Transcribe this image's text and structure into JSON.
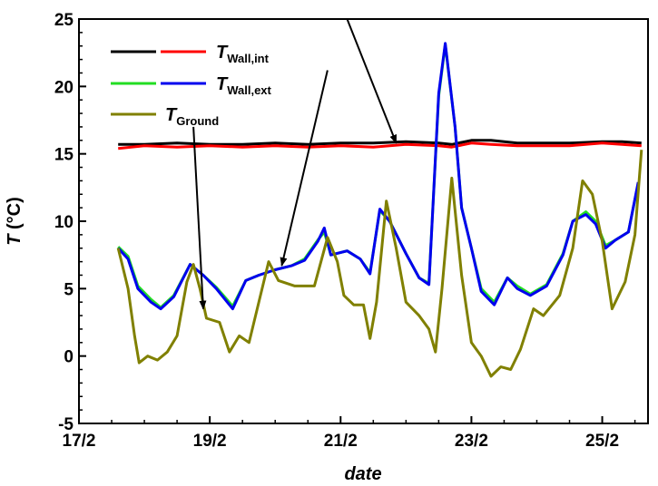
{
  "chart_data": {
    "type": "line",
    "xlabel": "date",
    "ylabel": "T (°C)",
    "ylabel_parts": {
      "symbol": "T",
      "unit": " (°C)"
    },
    "xlim": [
      17,
      25.7
    ],
    "ylim": [
      -5,
      25
    ],
    "x_ticks": [
      {
        "value": 17,
        "label": "17/2"
      },
      {
        "value": 19,
        "label": "19/2"
      },
      {
        "value": 21,
        "label": "21/2"
      },
      {
        "value": 23,
        "label": "23/2"
      },
      {
        "value": 25,
        "label": "25/2"
      }
    ],
    "y_ticks": [
      {
        "value": -5,
        "label": "-5"
      },
      {
        "value": 0,
        "label": "0"
      },
      {
        "value": 5,
        "label": "5"
      },
      {
        "value": 10,
        "label": "10"
      },
      {
        "value": 15,
        "label": "15"
      },
      {
        "value": 20,
        "label": "20"
      },
      {
        "value": 25,
        "label": "25"
      }
    ],
    "grid": false,
    "legend_position": "top-left",
    "legend": [
      {
        "label_main": "T",
        "label_sub": "Wall,int",
        "colors": [
          "#000000",
          "#ff0000"
        ]
      },
      {
        "label_main": "T",
        "label_sub": "Wall,ext",
        "colors": [
          "#22dd22",
          "#0000ee"
        ]
      },
      {
        "label_main": "T",
        "label_sub": "Ground",
        "colors": [
          "#808000"
        ]
      }
    ],
    "series": [
      {
        "color": "#000000",
        "points": [
          [
            17.6,
            15.7
          ],
          [
            18.0,
            15.7
          ],
          [
            18.5,
            15.8
          ],
          [
            19.0,
            15.7
          ],
          [
            19.5,
            15.7
          ],
          [
            20.0,
            15.8
          ],
          [
            20.5,
            15.7
          ],
          [
            21.0,
            15.8
          ],
          [
            21.5,
            15.8
          ],
          [
            22.0,
            15.9
          ],
          [
            22.5,
            15.8
          ],
          [
            22.7,
            15.7
          ],
          [
            23.0,
            16.0
          ],
          [
            23.3,
            16.0
          ],
          [
            23.7,
            15.8
          ],
          [
            24.0,
            15.8
          ],
          [
            24.5,
            15.8
          ],
          [
            25.0,
            15.9
          ],
          [
            25.3,
            15.9
          ],
          [
            25.6,
            15.8
          ]
        ]
      },
      {
        "color": "#ff0000",
        "points": [
          [
            17.6,
            15.4
          ],
          [
            18.0,
            15.6
          ],
          [
            18.5,
            15.5
          ],
          [
            19.0,
            15.6
          ],
          [
            19.5,
            15.5
          ],
          [
            20.0,
            15.6
          ],
          [
            20.5,
            15.5
          ],
          [
            21.0,
            15.6
          ],
          [
            21.5,
            15.5
          ],
          [
            22.0,
            15.7
          ],
          [
            22.5,
            15.6
          ],
          [
            22.7,
            15.5
          ],
          [
            23.0,
            15.8
          ],
          [
            23.3,
            15.7
          ],
          [
            23.7,
            15.6
          ],
          [
            24.0,
            15.6
          ],
          [
            24.5,
            15.6
          ],
          [
            25.0,
            15.8
          ],
          [
            25.3,
            15.7
          ],
          [
            25.6,
            15.6
          ]
        ]
      },
      {
        "color": "#22dd22",
        "points": [
          [
            17.6,
            8.1
          ],
          [
            17.75,
            7.4
          ],
          [
            17.9,
            5.2
          ],
          [
            18.1,
            4.2
          ],
          [
            18.25,
            3.6
          ],
          [
            18.45,
            4.5
          ],
          [
            18.7,
            6.8
          ],
          [
            18.9,
            6.0
          ],
          [
            19.1,
            5.1
          ],
          [
            19.35,
            3.7
          ],
          [
            19.55,
            5.6
          ],
          [
            19.75,
            6.0
          ],
          [
            20.0,
            6.4
          ],
          [
            20.25,
            6.7
          ],
          [
            20.45,
            7.2
          ],
          [
            20.65,
            8.6
          ],
          [
            20.75,
            9.2
          ],
          [
            20.85,
            7.5
          ],
          [
            21.1,
            7.8
          ],
          [
            21.3,
            7.2
          ],
          [
            21.45,
            6.2
          ],
          [
            21.6,
            10.8
          ],
          [
            21.75,
            10.0
          ],
          [
            22.0,
            7.6
          ],
          [
            22.2,
            5.8
          ],
          [
            22.35,
            5.4
          ],
          [
            22.5,
            19.3
          ],
          [
            22.6,
            23.1
          ],
          [
            22.75,
            17.0
          ],
          [
            22.85,
            11.0
          ],
          [
            23.0,
            8.0
          ],
          [
            23.15,
            5.0
          ],
          [
            23.35,
            4.0
          ],
          [
            23.55,
            5.8
          ],
          [
            23.7,
            5.2
          ],
          [
            23.9,
            4.6
          ],
          [
            24.15,
            5.3
          ],
          [
            24.4,
            7.6
          ],
          [
            24.55,
            10.0
          ],
          [
            24.75,
            10.7
          ],
          [
            24.9,
            10.0
          ],
          [
            25.05,
            8.2
          ],
          [
            25.2,
            8.6
          ],
          [
            25.4,
            9.2
          ],
          [
            25.55,
            12.8
          ]
        ]
      },
      {
        "color": "#0000ee",
        "points": [
          [
            17.6,
            8.0
          ],
          [
            17.75,
            7.2
          ],
          [
            17.9,
            5.0
          ],
          [
            18.1,
            4.0
          ],
          [
            18.25,
            3.5
          ],
          [
            18.45,
            4.4
          ],
          [
            18.7,
            6.8
          ],
          [
            18.9,
            6.0
          ],
          [
            19.1,
            5.0
          ],
          [
            19.35,
            3.5
          ],
          [
            19.55,
            5.6
          ],
          [
            19.75,
            6.0
          ],
          [
            20.0,
            6.4
          ],
          [
            20.25,
            6.7
          ],
          [
            20.45,
            7.1
          ],
          [
            20.65,
            8.5
          ],
          [
            20.75,
            9.5
          ],
          [
            20.85,
            7.5
          ],
          [
            21.1,
            7.8
          ],
          [
            21.3,
            7.2
          ],
          [
            21.45,
            6.1
          ],
          [
            21.6,
            10.9
          ],
          [
            21.75,
            10.0
          ],
          [
            22.0,
            7.6
          ],
          [
            22.2,
            5.8
          ],
          [
            22.35,
            5.3
          ],
          [
            22.5,
            19.5
          ],
          [
            22.6,
            23.2
          ],
          [
            22.75,
            17.0
          ],
          [
            22.85,
            11.0
          ],
          [
            23.0,
            8.0
          ],
          [
            23.15,
            4.8
          ],
          [
            23.35,
            3.8
          ],
          [
            23.55,
            5.8
          ],
          [
            23.7,
            5.0
          ],
          [
            23.9,
            4.5
          ],
          [
            24.15,
            5.2
          ],
          [
            24.4,
            7.5
          ],
          [
            24.55,
            10.0
          ],
          [
            24.75,
            10.5
          ],
          [
            24.9,
            9.8
          ],
          [
            25.05,
            8.0
          ],
          [
            25.2,
            8.6
          ],
          [
            25.4,
            9.2
          ],
          [
            25.55,
            12.9
          ]
        ]
      },
      {
        "color": "#808000",
        "points": [
          [
            17.6,
            8.0
          ],
          [
            17.75,
            5.0
          ],
          [
            17.85,
            1.5
          ],
          [
            17.92,
            -0.5
          ],
          [
            18.05,
            0.0
          ],
          [
            18.2,
            -0.3
          ],
          [
            18.35,
            0.3
          ],
          [
            18.5,
            1.5
          ],
          [
            18.65,
            5.5
          ],
          [
            18.75,
            6.8
          ],
          [
            18.85,
            5.0
          ],
          [
            18.95,
            2.8
          ],
          [
            19.15,
            2.5
          ],
          [
            19.3,
            0.3
          ],
          [
            19.45,
            1.5
          ],
          [
            19.6,
            1.0
          ],
          [
            19.75,
            4.0
          ],
          [
            19.9,
            7.0
          ],
          [
            20.05,
            5.6
          ],
          [
            20.3,
            5.2
          ],
          [
            20.6,
            5.2
          ],
          [
            20.8,
            8.8
          ],
          [
            20.95,
            7.0
          ],
          [
            21.05,
            4.5
          ],
          [
            21.2,
            3.8
          ],
          [
            21.35,
            3.8
          ],
          [
            21.45,
            1.3
          ],
          [
            21.55,
            4.0
          ],
          [
            21.7,
            11.5
          ],
          [
            21.85,
            8.0
          ],
          [
            22.0,
            4.0
          ],
          [
            22.2,
            3.0
          ],
          [
            22.35,
            2.0
          ],
          [
            22.45,
            0.3
          ],
          [
            22.55,
            5.0
          ],
          [
            22.7,
            13.2
          ],
          [
            22.85,
            6.0
          ],
          [
            23.0,
            1.0
          ],
          [
            23.15,
            0.0
          ],
          [
            23.3,
            -1.5
          ],
          [
            23.45,
            -0.8
          ],
          [
            23.6,
            -1.0
          ],
          [
            23.75,
            0.5
          ],
          [
            23.95,
            3.5
          ],
          [
            24.1,
            3.0
          ],
          [
            24.35,
            4.5
          ],
          [
            24.55,
            8.0
          ],
          [
            24.7,
            13.0
          ],
          [
            24.85,
            12.0
          ],
          [
            25.0,
            8.5
          ],
          [
            25.15,
            3.5
          ],
          [
            25.35,
            5.5
          ],
          [
            25.5,
            9.0
          ],
          [
            25.6,
            15.3
          ]
        ]
      }
    ],
    "annotations": [
      {
        "target": "series-1",
        "from": [
          21.1,
          25
        ],
        "to": [
          21.85,
          15.8
        ]
      },
      {
        "target": "series-3",
        "from": [
          20.8,
          21.2
        ],
        "to": [
          20.1,
          6.7
        ]
      },
      {
        "target": "series-4",
        "from": [
          18.75,
          17.0
        ],
        "to": [
          18.9,
          3.5
        ]
      }
    ]
  }
}
